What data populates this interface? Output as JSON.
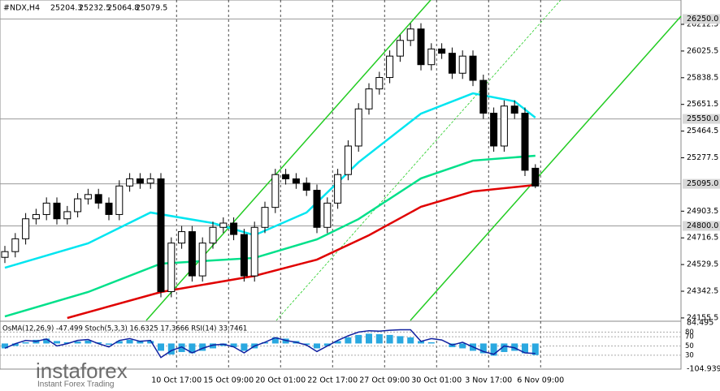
{
  "chart_data": {
    "type": "candlestick",
    "title": "#NDX,H4",
    "ohlc_header": [
      25204.3,
      25232.5,
      25064.8,
      25079.5
    ],
    "open": [
      24580,
      24620,
      24710,
      24850,
      24880,
      24960,
      24850,
      24900,
      24990,
      25020,
      24960,
      24880,
      25080,
      25130,
      25100,
      25130,
      24340,
      24680,
      24760,
      24450,
      24680,
      24790,
      24820,
      24740,
      24450,
      24790,
      24930,
      25160,
      25130,
      25100,
      25050,
      24790,
      24960,
      25160,
      25360,
      25620,
      25760,
      25840,
      25990,
      26100,
      26180,
      25930,
      26040,
      26010,
      25870,
      25990,
      25820,
      25590,
      25360,
      25640,
      25590,
      25204.3
    ],
    "high": [
      24660,
      24750,
      24890,
      24920,
      25000,
      25000,
      24940,
      25030,
      25060,
      25060,
      25000,
      25120,
      25170,
      25170,
      25170,
      25170,
      24720,
      24800,
      24800,
      24720,
      24830,
      24860,
      24860,
      24780,
      24830,
      24970,
      25200,
      25200,
      25170,
      25140,
      25090,
      25000,
      25200,
      25400,
      25660,
      25800,
      25880,
      26030,
      26140,
      26220,
      26220,
      26080,
      26080,
      26050,
      26030,
      26030,
      25860,
      25630,
      25680,
      25680,
      25630,
      25232.5
    ],
    "low": [
      24540,
      24580,
      24670,
      24810,
      24840,
      24810,
      24810,
      24860,
      24950,
      24920,
      24840,
      24840,
      25040,
      25060,
      25060,
      24300,
      24300,
      24640,
      24410,
      24410,
      24640,
      24750,
      24700,
      24410,
      24410,
      24750,
      24890,
      25090,
      25060,
      25010,
      24750,
      24750,
      24920,
      25120,
      25320,
      25580,
      25720,
      25800,
      25950,
      26060,
      25890,
      25890,
      25970,
      25830,
      25830,
      25780,
      25550,
      25320,
      25320,
      25550,
      25150,
      25064.8
    ],
    "close": [
      24620,
      24710,
      24850,
      24880,
      24960,
      24850,
      24900,
      24990,
      25020,
      24960,
      24880,
      25080,
      25130,
      25100,
      25130,
      24340,
      24680,
      24760,
      24450,
      24680,
      24790,
      24820,
      24740,
      24450,
      24790,
      24930,
      25160,
      25130,
      25100,
      25050,
      24790,
      24960,
      25160,
      25360,
      25620,
      25760,
      25840,
      25990,
      26100,
      26180,
      25930,
      26040,
      26010,
      25870,
      25990,
      25820,
      25590,
      25360,
      25640,
      25590,
      25190,
      25079.5
    ],
    "moving_averages": [
      {
        "color": "#00e5f0",
        "x": [
          0,
          8,
          14,
          20,
          24,
          29,
          34,
          40,
          45,
          49,
          51
        ],
        "values": [
          24507,
          24678,
          24894,
          24820,
          24735,
          24894,
          25246,
          25587,
          25729,
          25673,
          25559
        ]
      },
      {
        "color": "#00e08a",
        "x": [
          0,
          8,
          15,
          24,
          30,
          34,
          40,
          45,
          51
        ],
        "values": [
          24166,
          24337,
          24536,
          24576,
          24706,
          24848,
          25133,
          25258,
          25292
        ]
      },
      {
        "color": "#e00000",
        "x": [
          6,
          15,
          24,
          30,
          35,
          40,
          45,
          51
        ],
        "values": [
          24155,
          24337,
          24450,
          24564,
          24735,
          24934,
          25042,
          25087
        ]
      }
    ],
    "ylim": [
      24138,
      26383
    ],
    "yticks": [
      26212.5,
      26025.5,
      25838.5,
      25651.5,
      25464.5,
      25277.5,
      24903.5,
      24716.5,
      24529.5,
      24342.5,
      24155.5
    ],
    "levels": [
      {
        "value": 26250,
        "label": "26250.0"
      },
      {
        "value": 25550,
        "label": "25550.0"
      },
      {
        "value": 25095,
        "label": "25095.0"
      },
      {
        "value": 24800,
        "label": "24800.0"
      }
    ],
    "xticks": [
      {
        "value": 16.5,
        "label": "10 Oct 17:00"
      },
      {
        "value": 21.5,
        "label": "15 Oct 09:00"
      },
      {
        "value": 26.5,
        "label": "20 Oct 01:00"
      },
      {
        "value": 31.5,
        "label": "22 Oct 17:00"
      },
      {
        "value": 36.5,
        "label": "27 Oct 09:00"
      },
      {
        "value": 41.5,
        "label": "30 Oct 01:00"
      },
      {
        "value": 46.5,
        "label": "3 Nov 17:00"
      },
      {
        "value": 51.5,
        "label": "6 Nov 09:00"
      }
    ],
    "indicator": {
      "label": "OsMA(12,26,9) -47.499  Stoch(5,3,3) 16.6325 17.3666  RSI(14) 33.7461",
      "ylim": [
        -104.939,
        84.495
      ],
      "yticks": [
        84.495,
        -104.939
      ],
      "osma": [
        -20,
        -10,
        5,
        15,
        20,
        10,
        5,
        8,
        12,
        5,
        -5,
        10,
        15,
        12,
        10,
        -30,
        -45,
        -35,
        -40,
        -30,
        -20,
        -10,
        -15,
        -30,
        -20,
        5,
        25,
        20,
        10,
        -5,
        -20,
        -10,
        10,
        25,
        35,
        40,
        38,
        35,
        30,
        25,
        10,
        5,
        0,
        -15,
        -20,
        -30,
        -40,
        -50,
        -35,
        -30,
        -40,
        -47.499
      ],
      "rsi_lim": [
        0,
        100
      ],
      "rsi_levels": [
        80,
        70,
        50,
        30
      ],
      "rsi": [
        45,
        55,
        62,
        60,
        65,
        50,
        55,
        62,
        64,
        55,
        48,
        62,
        66,
        60,
        62,
        25,
        40,
        48,
        35,
        45,
        52,
        54,
        48,
        35,
        50,
        58,
        68,
        62,
        58,
        52,
        38,
        50,
        62,
        72,
        80,
        83,
        82,
        84,
        85,
        85,
        60,
        66,
        63,
        52,
        58,
        48,
        38,
        32,
        50,
        46,
        35,
        33.7461
      ]
    },
    "watermark": {
      "brand": "instaforex",
      "tagline": "Instant Forex Trading"
    }
  }
}
